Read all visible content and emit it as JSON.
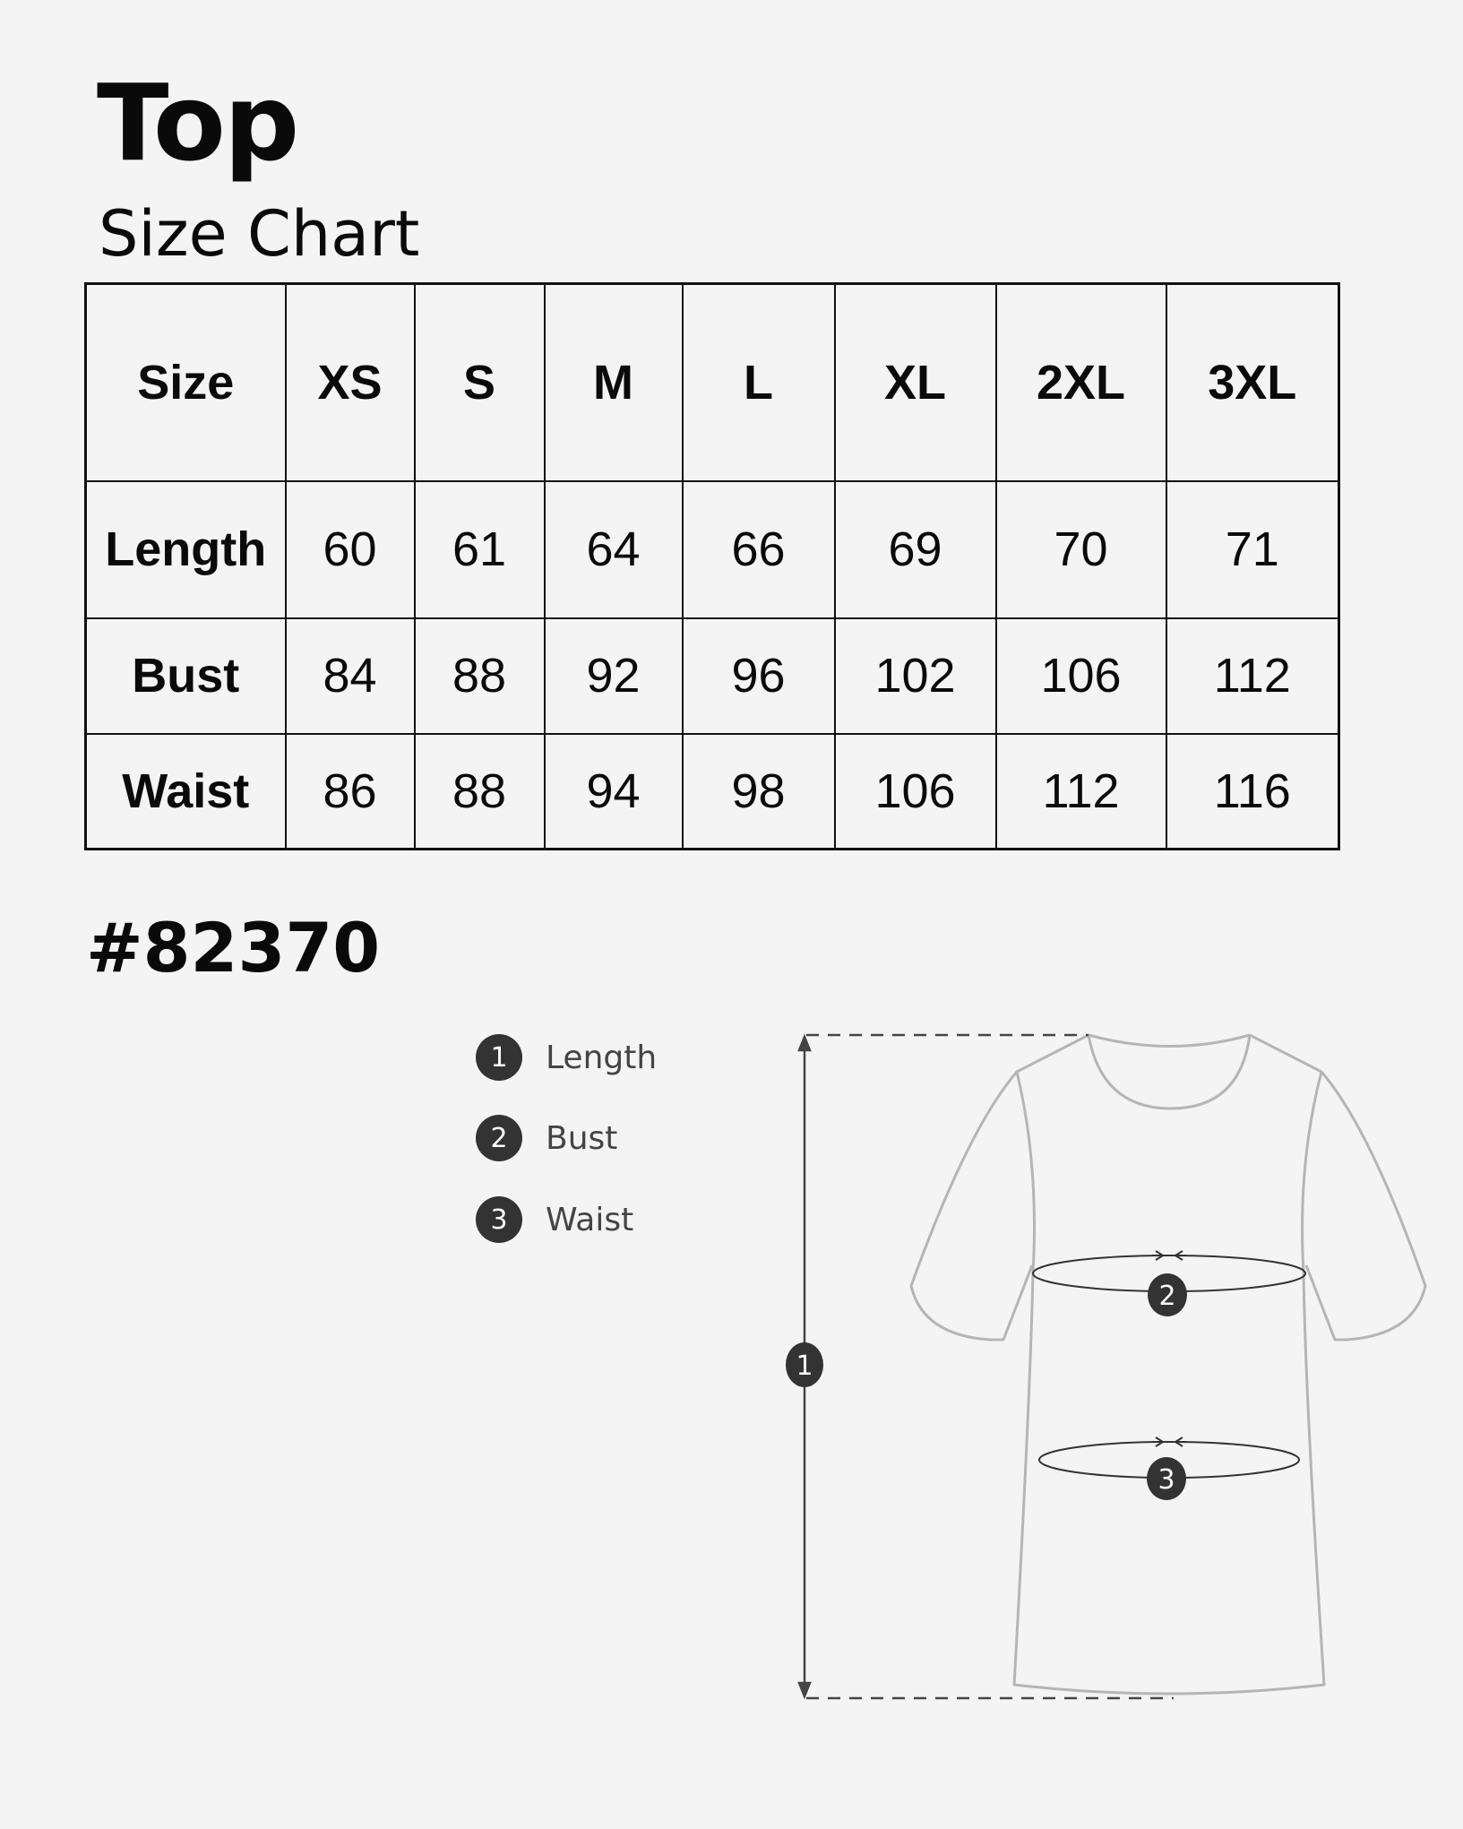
{
  "header": {
    "title": "Top",
    "subtitle": "Size Chart"
  },
  "table": {
    "columns": [
      "Size",
      "XS",
      "S",
      "M",
      "L",
      "XL",
      "2XL",
      "3XL"
    ],
    "rows": [
      {
        "label": "Length",
        "values": [
          "60",
          "61",
          "64",
          "66",
          "69",
          "70",
          "71"
        ]
      },
      {
        "label": "Bust",
        "values": [
          "84",
          "88",
          "92",
          "96",
          "102",
          "106",
          "112"
        ]
      },
      {
        "label": "Waist",
        "values": [
          "86",
          "88",
          "94",
          "98",
          "106",
          "112",
          "116"
        ]
      }
    ]
  },
  "product_code": "#82370",
  "legend": [
    {
      "number": "1",
      "label": "Length"
    },
    {
      "number": "2",
      "label": "Bust"
    },
    {
      "number": "3",
      "label": "Waist"
    }
  ],
  "diagram": {
    "markers": [
      "1",
      "2",
      "3"
    ]
  },
  "colors": {
    "background": "#f4f4f4",
    "badge": "#333333",
    "garment_outline": "#b5b5b5"
  }
}
